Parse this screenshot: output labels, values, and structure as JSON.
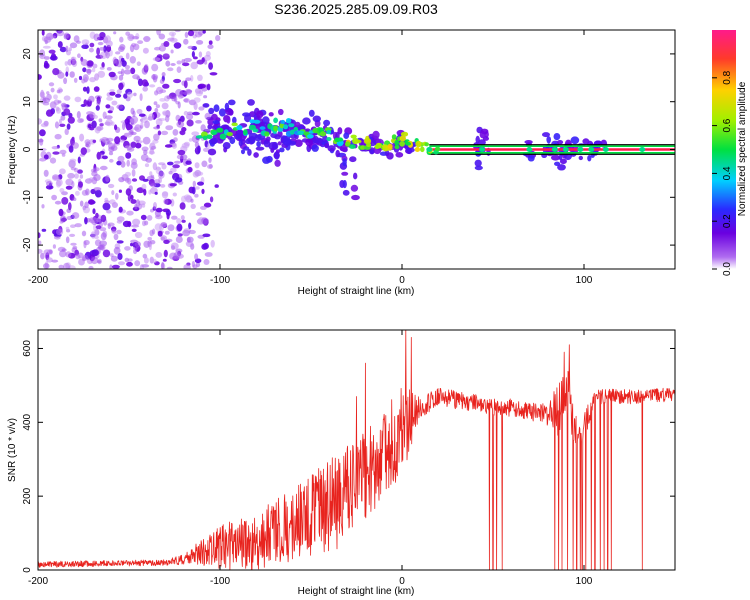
{
  "title": "S236.2025.285.09.09.R03",
  "colors": {
    "snr_line": "#e8231e",
    "trace_low": "#6a00e0",
    "trace_mid": "#00e040",
    "trace_high": "#ff1a4a",
    "frame": "#000000"
  },
  "chart_data": [
    {
      "type": "heatmap",
      "name": "spectrogram",
      "title": "",
      "xlabel": "Height of straight line (km)",
      "ylabel": "Frequency (Hz)",
      "xlim": [
        -200,
        150
      ],
      "ylim": [
        -25,
        25
      ],
      "xticks": [
        -200,
        -100,
        0,
        100
      ],
      "yticks": [
        -20,
        -10,
        0,
        10,
        20
      ],
      "colorbar": {
        "label": "Normalized spectral amplitude",
        "range": [
          0,
          1
        ],
        "ticks": [
          0.0,
          0.2,
          0.4,
          0.6,
          0.8
        ],
        "tick_labels": [
          "0.0",
          "0.2",
          "0.4",
          "0.6",
          "0.8"
        ],
        "colormap": "rainbow"
      },
      "noise_region_km": [
        -200,
        -105
      ],
      "carrier_frequency_hz": 0,
      "carrier_band_hz": [
        -1,
        1
      ],
      "carrier_band_km": [
        15,
        150
      ],
      "clusters": [
        {
          "x": -98,
          "y": 5,
          "sx": 8,
          "sy": 4.5,
          "n": 46
        },
        {
          "x": -82,
          "y": 4,
          "sx": 9,
          "sy": 4.5,
          "n": 46
        },
        {
          "x": -72,
          "y": 2,
          "sx": 7,
          "sy": 5.5,
          "n": 32
        },
        {
          "x": -60,
          "y": 4,
          "sx": 8,
          "sy": 3,
          "n": 34
        },
        {
          "x": -45,
          "y": 3,
          "sx": 8,
          "sy": 3,
          "n": 36
        },
        {
          "x": -32,
          "y": 0,
          "sx": 5,
          "sy": 4,
          "n": 20
        },
        {
          "x": -28,
          "y": -8,
          "sx": 3,
          "sy": 2,
          "n": 6
        },
        {
          "x": -18,
          "y": 1,
          "sx": 7,
          "sy": 1.5,
          "n": 26
        },
        {
          "x": 0,
          "y": 1,
          "sx": 8,
          "sy": 1.5,
          "n": 26
        },
        {
          "x": 44,
          "y": 0,
          "sx": 2.5,
          "sy": 3.5,
          "n": 14
        },
        {
          "x": 70,
          "y": 0,
          "sx": 2,
          "sy": 2,
          "n": 6
        },
        {
          "x": 83,
          "y": 0,
          "sx": 4,
          "sy": 2.5,
          "n": 14
        },
        {
          "x": 90,
          "y": 0,
          "sx": 5,
          "sy": 2.5,
          "n": 14
        },
        {
          "x": 103,
          "y": 0,
          "sx": 7,
          "sy": 2,
          "n": 16
        }
      ],
      "ridge": {
        "x": [
          -110,
          -100,
          -90,
          -80,
          -70,
          -65,
          -58,
          -50,
          -42,
          -35,
          -28,
          -20,
          -12,
          -5,
          0,
          5,
          12,
          20
        ],
        "y": [
          3,
          3.5,
          4,
          5,
          4,
          6,
          4,
          3,
          4,
          2,
          1.5,
          1,
          0.5,
          1,
          2,
          1,
          0.5,
          0
        ]
      }
    },
    {
      "type": "line",
      "name": "snr",
      "title": "",
      "xlabel": "Height of straight line (km)",
      "ylabel": "SNR (10 * v/v)",
      "xlim": [
        -200,
        150
      ],
      "ylim": [
        0,
        650
      ],
      "xticks": [
        -200,
        -100,
        0,
        100
      ],
      "yticks": [
        0,
        200,
        400,
        600
      ],
      "envelope": {
        "x": [
          -200,
          -160,
          -130,
          -120,
          -110,
          -100,
          -90,
          -80,
          -70,
          -60,
          -50,
          -40,
          -30,
          -20,
          -10,
          -5,
          0,
          10,
          20,
          30,
          40,
          50,
          60,
          70,
          80,
          85,
          90,
          95,
          100,
          105,
          110,
          120,
          130,
          150
        ],
        "mean": [
          15,
          18,
          20,
          30,
          45,
          60,
          70,
          85,
          100,
          120,
          150,
          180,
          200,
          260,
          310,
          350,
          380,
          440,
          470,
          460,
          455,
          440,
          440,
          430,
          420,
          430,
          470,
          390,
          380,
          460,
          470,
          470,
          470,
          475
        ],
        "amp": [
          8,
          8,
          8,
          15,
          40,
          60,
          70,
          85,
          90,
          95,
          110,
          130,
          140,
          120,
          120,
          120,
          130,
          30,
          25,
          25,
          25,
          25,
          25,
          25,
          30,
          70,
          110,
          50,
          40,
          25,
          20,
          20,
          20,
          20
        ]
      },
      "dropouts_km": [
        48,
        50,
        52,
        55,
        84,
        86,
        88,
        91,
        94,
        96,
        98,
        99,
        101,
        104,
        106,
        109,
        111,
        113,
        115,
        132
      ],
      "spikes": [
        [
          2,
          650
        ],
        [
          5,
          630
        ],
        [
          -20,
          560
        ],
        [
          -25,
          470
        ],
        [
          92,
          610
        ],
        [
          89,
          590
        ]
      ]
    }
  ]
}
